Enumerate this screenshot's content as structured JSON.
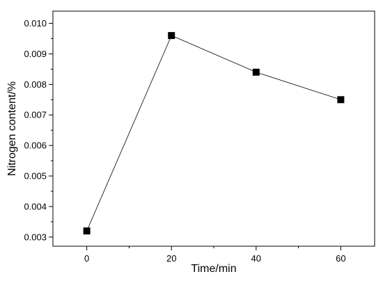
{
  "chart_data": {
    "type": "line",
    "xlabel": "Time/min",
    "ylabel": "Nitrogen content/%",
    "xlim": [
      -8,
      68
    ],
    "ylim": [
      0.0027,
      0.0104
    ],
    "x_ticks": [
      0,
      20,
      40,
      60
    ],
    "x_tick_labels": [
      "0",
      "20",
      "40",
      "60"
    ],
    "x_minor_ticks": [
      10,
      30,
      50
    ],
    "y_ticks": [
      0.003,
      0.004,
      0.005,
      0.006,
      0.007,
      0.008,
      0.009,
      0.01
    ],
    "y_tick_labels": [
      "0.003",
      "0.004",
      "0.005",
      "0.006",
      "0.007",
      "0.008",
      "0.009",
      "0.010"
    ],
    "y_minor_ticks": [
      0.0035,
      0.0045,
      0.0055,
      0.0065,
      0.0075,
      0.0085,
      0.0095
    ],
    "grid": false,
    "marker": "square",
    "series": [
      {
        "x": [
          0,
          20,
          40,
          60
        ],
        "values": [
          0.0032,
          0.0096,
          0.0084,
          0.0075
        ]
      }
    ]
  }
}
